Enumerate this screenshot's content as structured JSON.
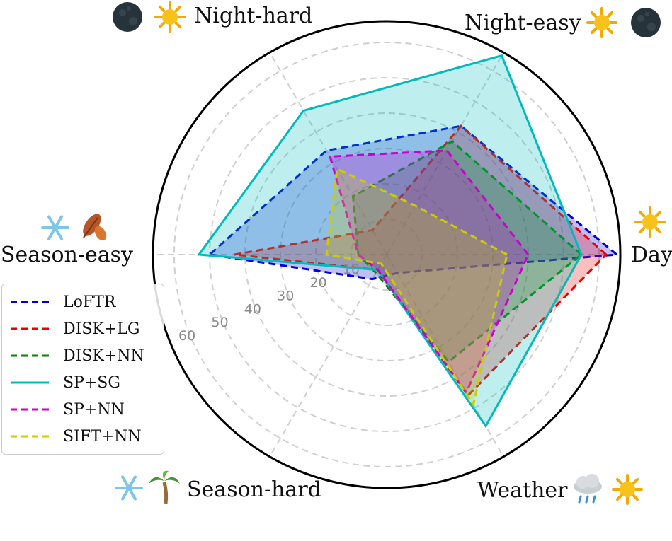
{
  "chart_data": {
    "type": "radar",
    "axes": [
      {
        "label": "Day",
        "icons": [
          "sun-icon"
        ]
      },
      {
        "label": "Night-easy",
        "icons": [
          "sun-icon",
          "moon-icon"
        ]
      },
      {
        "label": "Night-hard",
        "icons": [
          "moon-icon",
          "sun-icon"
        ]
      },
      {
        "label": "Season-easy",
        "icons": [
          "snowflake-icon",
          "autumn-leaves-icon"
        ]
      },
      {
        "label": "Season-hard",
        "icons": [
          "snowflake-icon",
          "palm-tree-icon"
        ]
      },
      {
        "label": "Weather",
        "icons": [
          "rain-cloud-icon",
          "sun-icon"
        ]
      }
    ],
    "radial_ticks": [
      10,
      20,
      30,
      40,
      50,
      60
    ],
    "rlim": [
      0,
      66
    ],
    "grid": true,
    "legend_position": "lower-left",
    "series": [
      {
        "name": "LoFTR",
        "color": "#0000dd",
        "dash": "dashed",
        "values": [
          65,
          42,
          34,
          50,
          8,
          6
        ]
      },
      {
        "name": "DISK+LG",
        "color": "#ee0000",
        "dash": "dashed",
        "values": [
          62,
          42,
          8,
          43,
          5,
          46
        ]
      },
      {
        "name": "DISK+NN",
        "color": "#008800",
        "dash": "dashed",
        "values": [
          55,
          37,
          19,
          8,
          6,
          35
        ]
      },
      {
        "name": "SP+SG",
        "color": "#00bbbb",
        "dash": "solid",
        "values": [
          55,
          65,
          47,
          53,
          5,
          56
        ]
      },
      {
        "name": "SP+NN",
        "color": "#cc00cc",
        "dash": "dashed",
        "values": [
          40,
          34,
          32,
          8,
          5,
          45
        ]
      },
      {
        "name": "SIFT+NN",
        "color": "#cccc00",
        "dash": "dashed",
        "values": [
          34,
          16,
          28,
          17,
          3,
          49
        ]
      }
    ]
  }
}
